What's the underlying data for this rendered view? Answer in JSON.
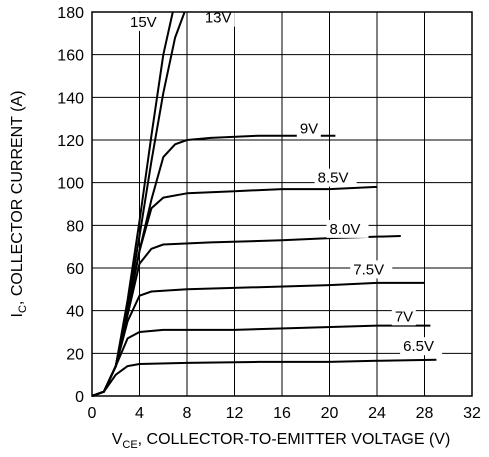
{
  "chart_data": {
    "type": "line",
    "xlabel": {
      "main": "V",
      "sub": "CE",
      "rest": ", COLLECTOR-TO-EMITTER VOLTAGE (V)"
    },
    "ylabel": {
      "main": "I",
      "sub": "C",
      "rest": ", COLLECTOR CURRENT (A)"
    },
    "xlim": [
      0,
      32
    ],
    "ylim": [
      0,
      180
    ],
    "xticks": [
      0,
      4,
      8,
      12,
      16,
      20,
      24,
      28,
      32
    ],
    "yticks": [
      0,
      20,
      40,
      60,
      80,
      100,
      120,
      140,
      160,
      180
    ],
    "grid": true,
    "series": [
      {
        "name": "15V",
        "label_at": [
          3.2,
          173
        ],
        "points": [
          [
            0,
            0
          ],
          [
            1,
            2
          ],
          [
            2,
            14
          ],
          [
            3,
            45
          ],
          [
            4,
            82
          ],
          [
            5,
            122
          ],
          [
            6,
            160
          ],
          [
            6.8,
            180
          ]
        ]
      },
      {
        "name": "13V",
        "label_at": [
          9.5,
          175
        ],
        "points": [
          [
            0,
            0
          ],
          [
            1,
            2
          ],
          [
            2,
            14
          ],
          [
            3,
            42
          ],
          [
            4,
            75
          ],
          [
            5,
            110
          ],
          [
            6,
            142
          ],
          [
            7,
            168
          ],
          [
            7.8,
            180
          ]
        ]
      },
      {
        "name": "9V",
        "label_at": [
          17.5,
          123
        ],
        "points": [
          [
            0,
            0
          ],
          [
            1,
            2
          ],
          [
            2,
            14
          ],
          [
            3,
            40
          ],
          [
            4,
            68
          ],
          [
            5,
            92
          ],
          [
            6,
            112
          ],
          [
            7,
            118
          ],
          [
            8,
            120
          ],
          [
            10,
            121
          ],
          [
            14,
            122
          ],
          [
            20.5,
            122
          ]
        ]
      },
      {
        "name": "8.5V",
        "label_at": [
          19,
          100
        ],
        "points": [
          [
            0,
            0
          ],
          [
            1,
            2
          ],
          [
            2,
            14
          ],
          [
            3,
            40
          ],
          [
            4,
            68
          ],
          [
            5,
            88
          ],
          [
            6,
            93
          ],
          [
            8,
            95
          ],
          [
            12,
            96
          ],
          [
            16,
            97
          ],
          [
            20,
            97
          ],
          [
            24,
            98
          ]
        ]
      },
      {
        "name": "8.0V",
        "label_at": [
          20,
          76
        ],
        "points": [
          [
            0,
            0
          ],
          [
            1,
            2
          ],
          [
            2,
            14
          ],
          [
            3,
            38
          ],
          [
            4,
            62
          ],
          [
            5,
            69
          ],
          [
            6,
            71
          ],
          [
            10,
            72
          ],
          [
            16,
            73
          ],
          [
            20,
            74
          ],
          [
            26,
            75
          ]
        ]
      },
      {
        "name": "7.5V",
        "label_at": [
          22,
          57
        ],
        "points": [
          [
            0,
            0
          ],
          [
            1,
            2
          ],
          [
            2,
            14
          ],
          [
            3,
            35
          ],
          [
            4,
            47
          ],
          [
            5,
            49
          ],
          [
            8,
            50
          ],
          [
            14,
            51
          ],
          [
            20,
            52
          ],
          [
            24,
            53
          ],
          [
            28,
            53
          ]
        ]
      },
      {
        "name": "7V",
        "label_at": [
          25.5,
          35
        ],
        "points": [
          [
            0,
            0
          ],
          [
            1,
            2
          ],
          [
            2,
            14
          ],
          [
            3,
            27
          ],
          [
            4,
            30
          ],
          [
            6,
            31
          ],
          [
            12,
            31
          ],
          [
            18,
            32
          ],
          [
            24,
            33
          ],
          [
            28.5,
            33
          ]
        ]
      },
      {
        "name": "6.5V",
        "label_at": [
          26.2,
          21
        ],
        "points": [
          [
            0,
            0
          ],
          [
            1,
            2
          ],
          [
            2,
            10
          ],
          [
            3,
            14
          ],
          [
            4,
            15
          ],
          [
            8,
            15.5
          ],
          [
            14,
            16
          ],
          [
            20,
            16
          ],
          [
            24,
            16.5
          ],
          [
            29,
            17
          ]
        ]
      }
    ]
  }
}
